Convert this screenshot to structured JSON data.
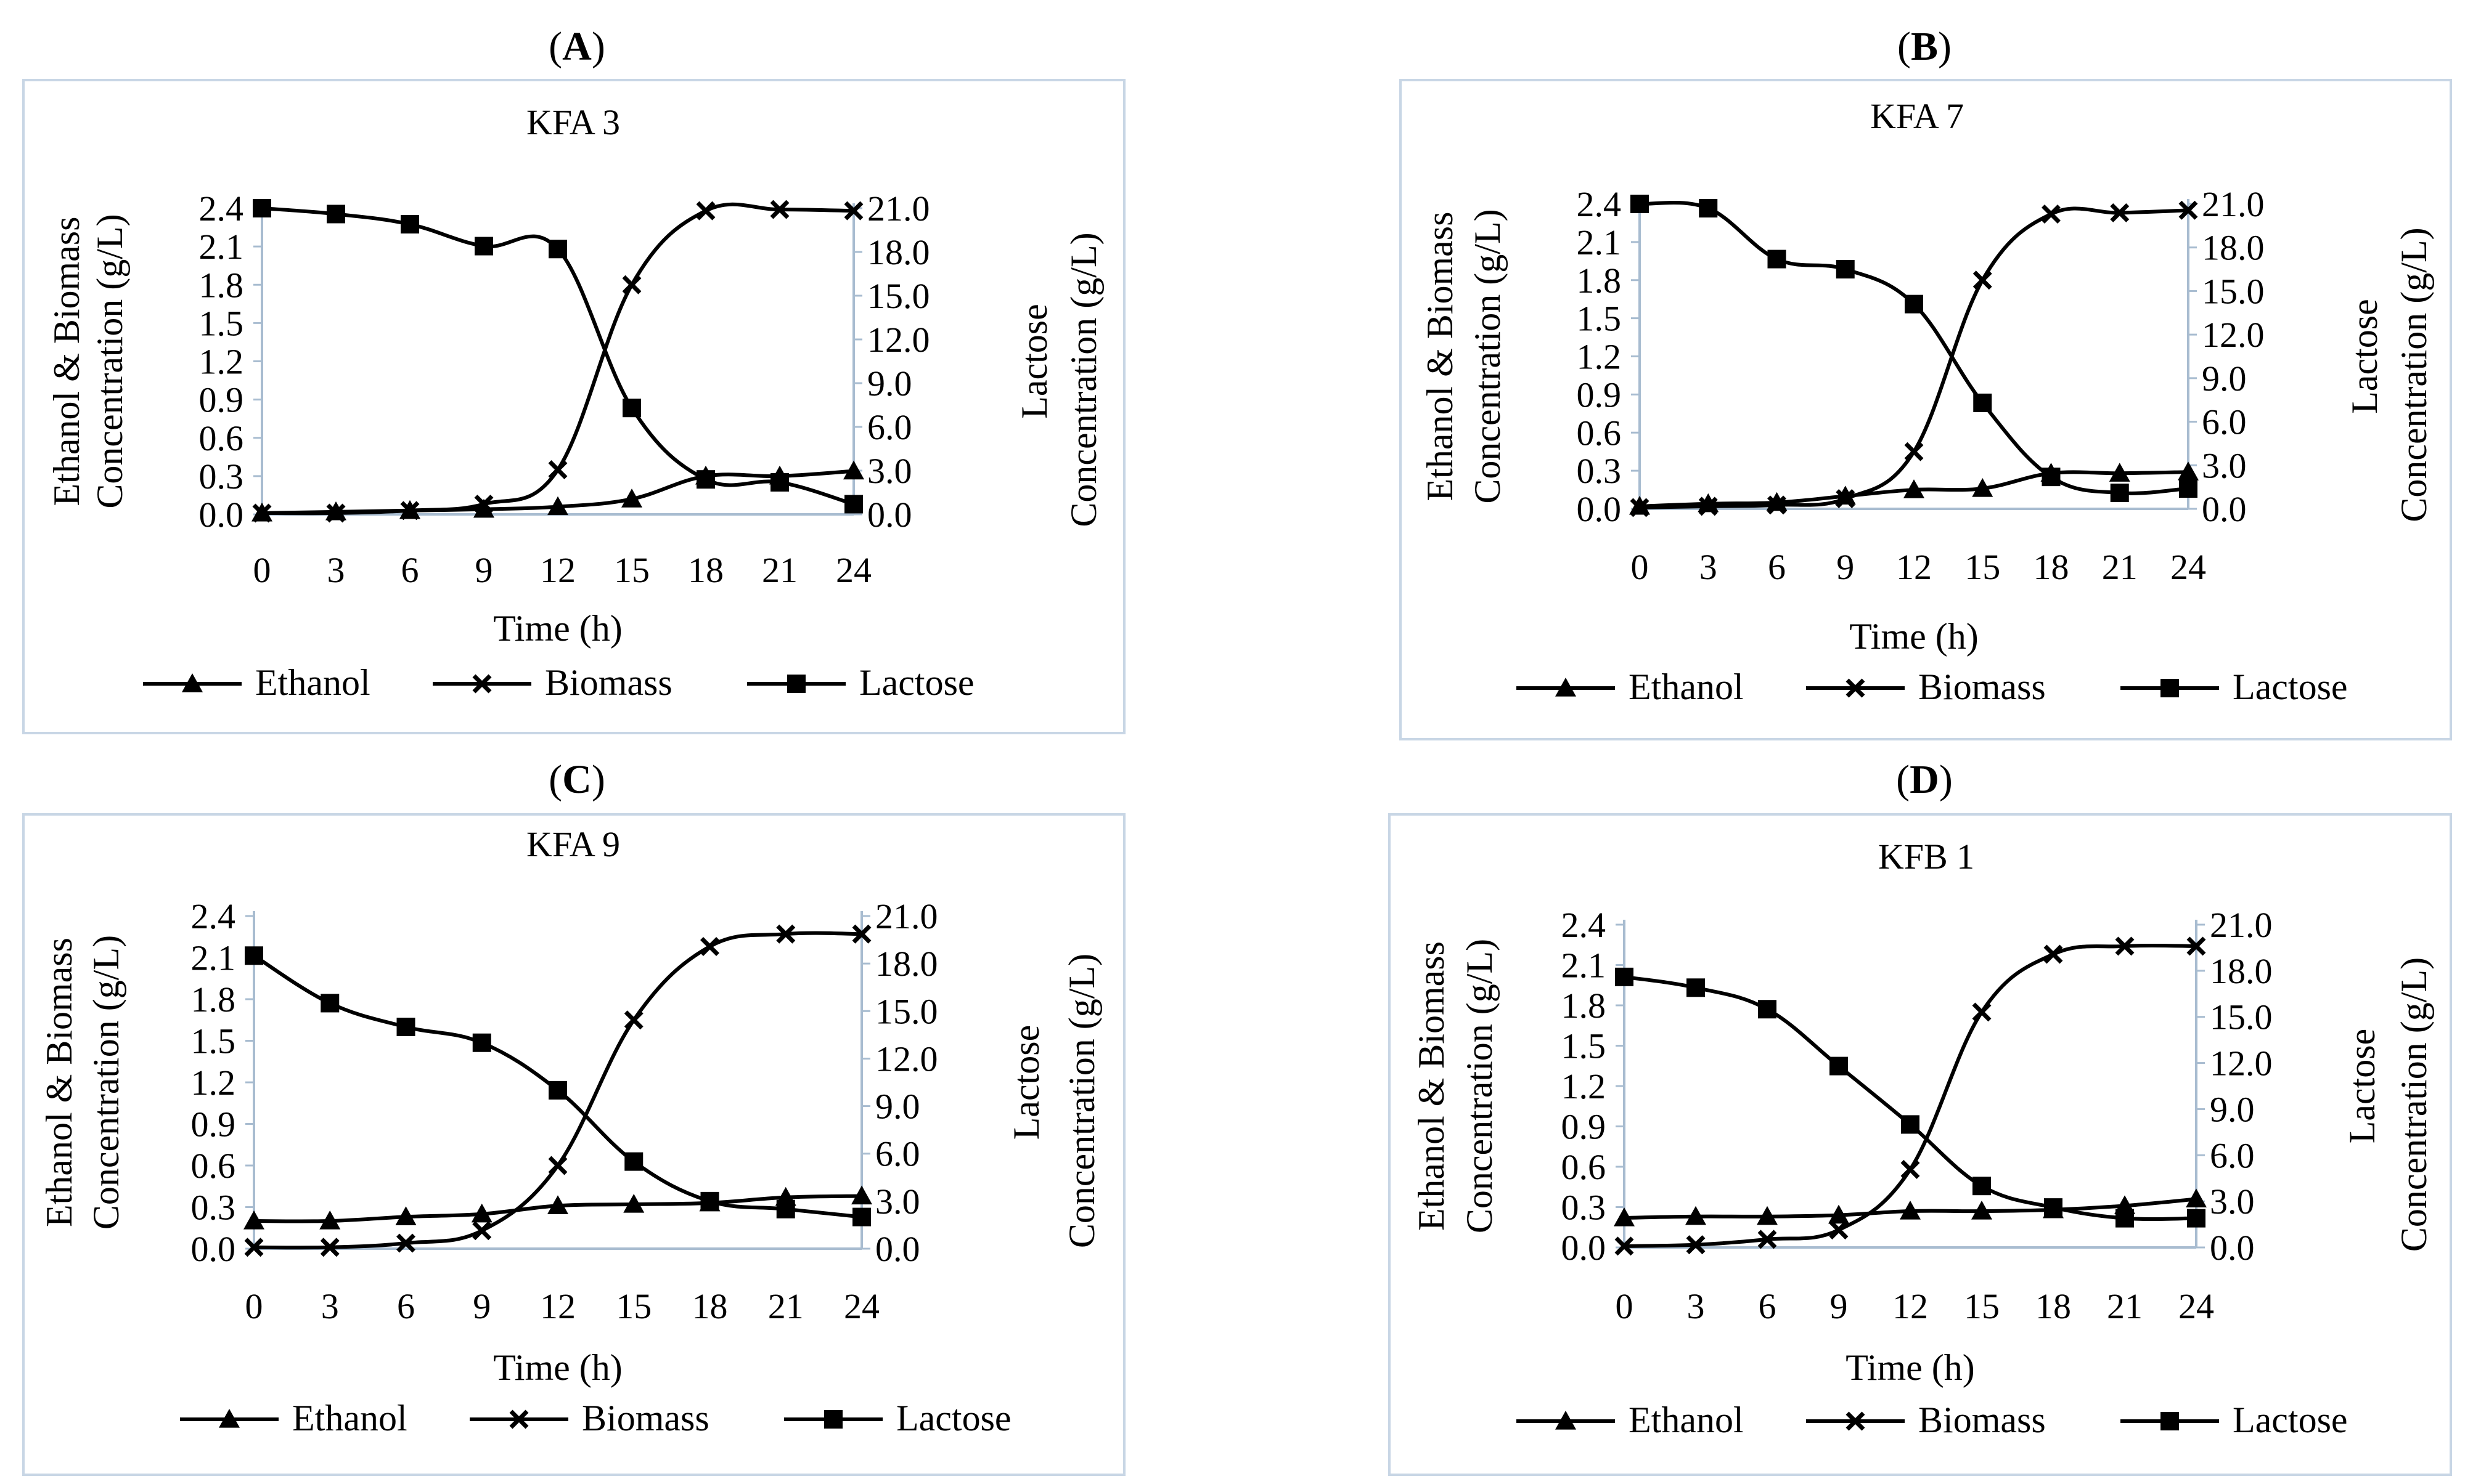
{
  "figure": {
    "x_label": "Time (h)",
    "y_left_label_line1": "Ethanol & Biomass",
    "y_left_label_line2": "Concentration (g/L)",
    "y_right_label_line1": "Lactose",
    "y_right_label_line2": "Concentration (g/L)",
    "legend": [
      "Ethanol",
      "Biomass",
      "Lactose"
    ]
  },
  "chart_data": [
    {
      "type": "line",
      "panel": "A",
      "title": "KFA 3",
      "xlabel": "Time (h)",
      "x": [
        0,
        3,
        6,
        9,
        12,
        15,
        18,
        21,
        24
      ],
      "ylim_left": [
        0,
        2.4
      ],
      "ylim_right": [
        0,
        21
      ],
      "yticks_left": [
        "0.0",
        "0.3",
        "0.6",
        "0.9",
        "1.2",
        "1.5",
        "1.8",
        "2.1",
        "2.4"
      ],
      "yticks_right": [
        "0.0",
        "3.0",
        "6.0",
        "9.0",
        "12.0",
        "15.0",
        "18.0",
        "21.0"
      ],
      "series": [
        {
          "name": "Ethanol",
          "axis": "left",
          "marker": "triangle",
          "values": [
            0.01,
            0.02,
            0.03,
            0.04,
            0.06,
            0.12,
            0.3,
            0.3,
            0.34
          ]
        },
        {
          "name": "Biomass",
          "axis": "left",
          "marker": "x",
          "values": [
            0.01,
            0.01,
            0.03,
            0.08,
            0.35,
            1.8,
            2.38,
            2.39,
            2.38
          ]
        },
        {
          "name": "Lactose",
          "axis": "right",
          "marker": "square",
          "values": [
            21.0,
            20.6,
            19.9,
            18.4,
            18.2,
            7.3,
            2.4,
            2.2,
            0.7
          ]
        }
      ]
    },
    {
      "type": "line",
      "panel": "B",
      "title": "KFA 7",
      "xlabel": "Time (h)",
      "x": [
        0,
        3,
        6,
        9,
        12,
        15,
        18,
        21,
        24
      ],
      "ylim_left": [
        0,
        2.4
      ],
      "ylim_right": [
        0,
        21
      ],
      "yticks_left": [
        "0.0",
        "0.3",
        "0.6",
        "0.9",
        "1.2",
        "1.5",
        "1.8",
        "2.1",
        "2.4"
      ],
      "yticks_right": [
        "0.0",
        "3.0",
        "6.0",
        "9.0",
        "12.0",
        "15.0",
        "18.0",
        "21.0"
      ],
      "series": [
        {
          "name": "Ethanol",
          "axis": "left",
          "marker": "triangle",
          "values": [
            0.02,
            0.04,
            0.05,
            0.1,
            0.15,
            0.16,
            0.28,
            0.28,
            0.29
          ]
        },
        {
          "name": "Biomass",
          "axis": "left",
          "marker": "x",
          "values": [
            0.01,
            0.02,
            0.03,
            0.08,
            0.45,
            1.8,
            2.32,
            2.33,
            2.35
          ]
        },
        {
          "name": "Lactose",
          "axis": "right",
          "marker": "square",
          "values": [
            21.0,
            20.7,
            17.2,
            16.5,
            14.1,
            7.3,
            2.2,
            1.1,
            1.4
          ]
        }
      ]
    },
    {
      "type": "line",
      "panel": "C",
      "title": "KFA 9",
      "xlabel": "Time (h)",
      "x": [
        0,
        3,
        6,
        9,
        12,
        15,
        18,
        21,
        24
      ],
      "ylim_left": [
        0,
        2.4
      ],
      "ylim_right": [
        0,
        21
      ],
      "yticks_left": [
        "0.0",
        "0.3",
        "0.6",
        "0.9",
        "1.2",
        "1.5",
        "1.8",
        "2.1",
        "2.4"
      ],
      "yticks_right": [
        "0.0",
        "3.0",
        "6.0",
        "9.0",
        "12.0",
        "15.0",
        "18.0",
        "21.0"
      ],
      "series": [
        {
          "name": "Ethanol",
          "axis": "left",
          "marker": "triangle",
          "values": [
            0.2,
            0.2,
            0.23,
            0.25,
            0.31,
            0.32,
            0.33,
            0.37,
            0.38
          ]
        },
        {
          "name": "Biomass",
          "axis": "left",
          "marker": "x",
          "values": [
            0.01,
            0.01,
            0.04,
            0.13,
            0.6,
            1.65,
            2.18,
            2.27,
            2.27
          ]
        },
        {
          "name": "Lactose",
          "axis": "right",
          "marker": "square",
          "values": [
            18.5,
            15.5,
            14.0,
            13.0,
            10.0,
            5.5,
            3.0,
            2.5,
            2.0
          ]
        }
      ]
    },
    {
      "type": "line",
      "panel": "D",
      "title": "KFB 1",
      "xlabel": "Time (h)",
      "x": [
        0,
        3,
        6,
        9,
        12,
        15,
        18,
        21,
        24
      ],
      "ylim_left": [
        0,
        2.4
      ],
      "ylim_right": [
        0,
        21
      ],
      "yticks_left": [
        "0.0",
        "0.3",
        "0.6",
        "0.9",
        "1.2",
        "1.5",
        "1.8",
        "2.1",
        "2.4"
      ],
      "yticks_right": [
        "0.0",
        "3.0",
        "6.0",
        "9.0",
        "12.0",
        "15.0",
        "18.0",
        "21.0"
      ],
      "series": [
        {
          "name": "Ethanol",
          "axis": "left",
          "marker": "triangle",
          "values": [
            0.22,
            0.23,
            0.23,
            0.24,
            0.27,
            0.27,
            0.28,
            0.31,
            0.36
          ]
        },
        {
          "name": "Biomass",
          "axis": "left",
          "marker": "x",
          "values": [
            0.01,
            0.02,
            0.06,
            0.13,
            0.58,
            1.75,
            2.18,
            2.24,
            2.24
          ]
        },
        {
          "name": "Lactose",
          "axis": "right",
          "marker": "square",
          "values": [
            17.6,
            16.9,
            15.5,
            11.8,
            8.0,
            4.0,
            2.6,
            1.9,
            1.9
          ]
        }
      ]
    }
  ]
}
